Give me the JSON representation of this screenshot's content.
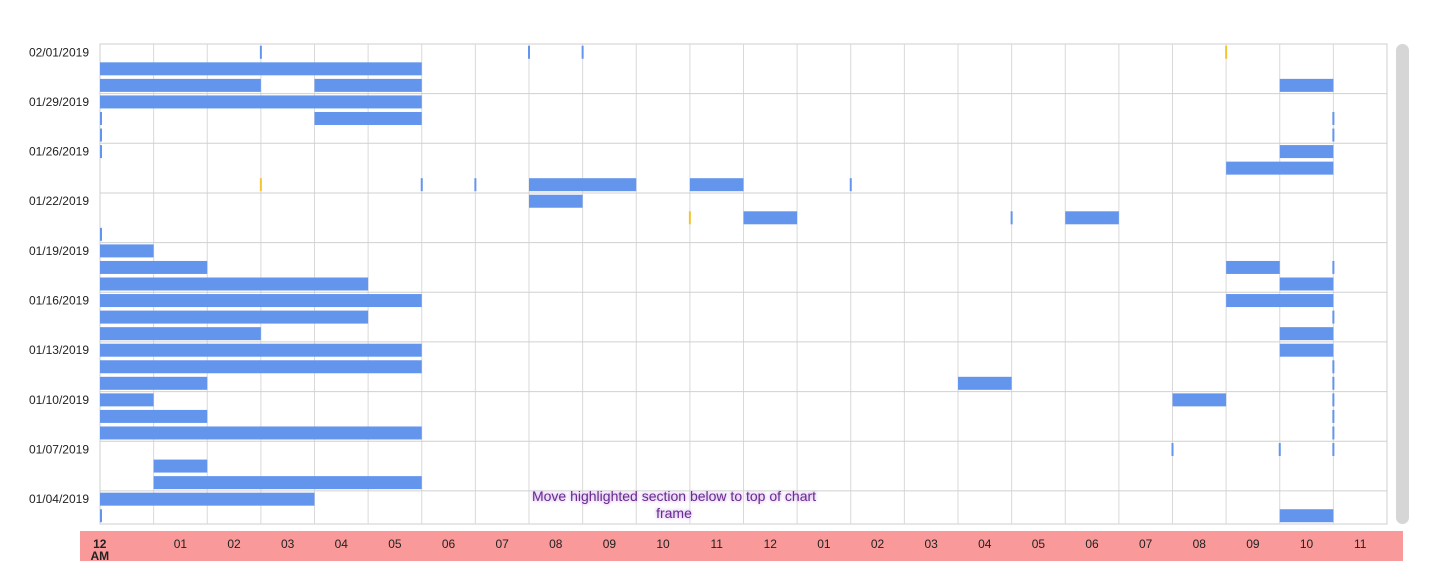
{
  "annotation": "Move highlighted section below to top of chart frame",
  "chart_data": {
    "type": "timeline",
    "x_ticks": [
      "12 AM",
      "01",
      "02",
      "03",
      "04",
      "05",
      "06",
      "07",
      "08",
      "09",
      "10",
      "11",
      "12",
      "01",
      "02",
      "03",
      "04",
      "05",
      "06",
      "07",
      "08",
      "09",
      "10",
      "11"
    ],
    "y_labels": [
      "02/01/2019",
      "01/29/2019",
      "01/26/2019",
      "01/22/2019",
      "01/19/2019",
      "01/16/2019",
      "01/13/2019",
      "01/10/2019",
      "01/07/2019",
      "01/04/2019"
    ],
    "x_range_hours": [
      0,
      24
    ],
    "bar_color": "#6495ed",
    "marker_color": "#f4c430",
    "axis_band_color": "#f99999",
    "rows": [
      {
        "label": "02/01/2019",
        "segments": [],
        "markers": [
          [
            3,
            "blue"
          ],
          [
            8,
            "blue"
          ],
          [
            9,
            "blue"
          ],
          [
            21,
            "yellow"
          ]
        ]
      },
      {
        "label": "",
        "segments": [
          [
            0,
            6
          ]
        ],
        "markers": []
      },
      {
        "label": "",
        "segments": [
          [
            0,
            3
          ],
          [
            4,
            6
          ],
          [
            22,
            23
          ]
        ],
        "markers": []
      },
      {
        "label": "01/29/2019",
        "segments": [
          [
            0,
            6
          ]
        ],
        "markers": []
      },
      {
        "label": "",
        "segments": [
          [
            4,
            6
          ]
        ],
        "markers": [
          [
            0,
            "blue"
          ],
          [
            23,
            "blue"
          ]
        ]
      },
      {
        "label": "",
        "segments": [],
        "markers": [
          [
            0,
            "blue"
          ],
          [
            23,
            "blue"
          ]
        ]
      },
      {
        "label": "01/26/2019",
        "segments": [
          [
            22,
            23
          ]
        ],
        "markers": [
          [
            0,
            "blue"
          ]
        ]
      },
      {
        "label": "",
        "segments": [
          [
            21,
            23
          ]
        ],
        "markers": []
      },
      {
        "label": "",
        "segments": [
          [
            8,
            10
          ],
          [
            11,
            12
          ]
        ],
        "markers": [
          [
            3,
            "yellow"
          ],
          [
            6,
            "blue"
          ],
          [
            7,
            "blue"
          ],
          [
            14,
            "blue"
          ]
        ]
      },
      {
        "label": "01/22/2019",
        "segments": [
          [
            8,
            9
          ]
        ],
        "markers": []
      },
      {
        "label": "",
        "segments": [
          [
            12,
            13
          ],
          [
            18,
            19
          ]
        ],
        "markers": [
          [
            11,
            "yellow"
          ],
          [
            17,
            "blue"
          ]
        ]
      },
      {
        "label": "",
        "segments": [],
        "markers": [
          [
            0,
            "blue"
          ]
        ]
      },
      {
        "label": "01/19/2019",
        "segments": [
          [
            0,
            1
          ]
        ],
        "markers": []
      },
      {
        "label": "",
        "segments": [
          [
            0,
            2
          ],
          [
            21,
            22
          ]
        ],
        "markers": [
          [
            23,
            "blue"
          ]
        ]
      },
      {
        "label": "",
        "segments": [
          [
            0,
            5
          ],
          [
            22,
            23
          ]
        ],
        "markers": []
      },
      {
        "label": "01/16/2019",
        "segments": [
          [
            0,
            6
          ],
          [
            21,
            23
          ]
        ],
        "markers": []
      },
      {
        "label": "",
        "segments": [
          [
            0,
            5
          ]
        ],
        "markers": [
          [
            23,
            "blue"
          ]
        ]
      },
      {
        "label": "",
        "segments": [
          [
            0,
            3
          ],
          [
            22,
            23
          ]
        ],
        "markers": []
      },
      {
        "label": "01/13/2019",
        "segments": [
          [
            0,
            6
          ],
          [
            22,
            23
          ]
        ],
        "markers": []
      },
      {
        "label": "",
        "segments": [
          [
            0,
            6
          ]
        ],
        "markers": [
          [
            23,
            "blue"
          ]
        ]
      },
      {
        "label": "",
        "segments": [
          [
            0,
            2
          ],
          [
            16,
            17
          ]
        ],
        "markers": [
          [
            23,
            "blue"
          ]
        ]
      },
      {
        "label": "01/10/2019",
        "segments": [
          [
            0,
            1
          ],
          [
            20,
            21
          ]
        ],
        "markers": [
          [
            23,
            "blue"
          ]
        ]
      },
      {
        "label": "",
        "segments": [
          [
            0,
            2
          ]
        ],
        "markers": [
          [
            23,
            "blue"
          ]
        ]
      },
      {
        "label": "",
        "segments": [
          [
            0,
            6
          ]
        ],
        "markers": [
          [
            23,
            "blue"
          ]
        ]
      },
      {
        "label": "01/07/2019",
        "segments": [],
        "markers": [
          [
            20,
            "blue"
          ],
          [
            22,
            "blue"
          ],
          [
            23,
            "blue"
          ]
        ]
      },
      {
        "label": "",
        "segments": [
          [
            1,
            2
          ]
        ],
        "markers": []
      },
      {
        "label": "",
        "segments": [
          [
            1,
            6
          ]
        ],
        "markers": []
      },
      {
        "label": "01/04/2019",
        "segments": [
          [
            0,
            4
          ]
        ],
        "markers": []
      },
      {
        "label": "",
        "segments": [
          [
            22,
            23
          ]
        ],
        "markers": [
          [
            0,
            "blue"
          ]
        ]
      }
    ]
  }
}
